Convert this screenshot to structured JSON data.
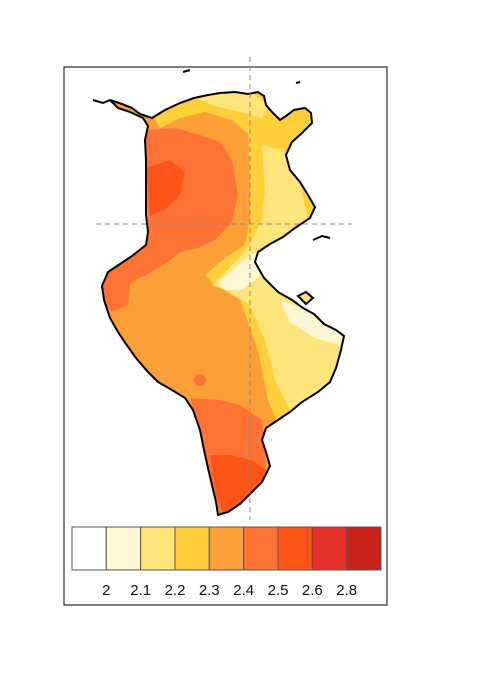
{
  "map": {
    "type": "choropleth",
    "region": "Tunisia",
    "gridlines": "dashed",
    "legend_position": "bottom",
    "colors": {
      "frame": "#000000",
      "coast": "#000000",
      "grid": "#888888",
      "background": "#ffffff"
    }
  },
  "legend": {
    "type": "colorbar",
    "bins": [
      {
        "color": "#ffffff"
      },
      {
        "color": "#fff7d1"
      },
      {
        "color": "#ffe47a"
      },
      {
        "color": "#ffcf3a"
      },
      {
        "color": "#fd9f37"
      },
      {
        "color": "#fe7334"
      },
      {
        "color": "#fd5518"
      },
      {
        "color": "#e8302a"
      },
      {
        "color": "#c8221b"
      }
    ],
    "tick_labels": [
      "2",
      "2.1",
      "2.2",
      "2.3",
      "2.4",
      "2.5",
      "2.6",
      "2.8"
    ]
  }
}
